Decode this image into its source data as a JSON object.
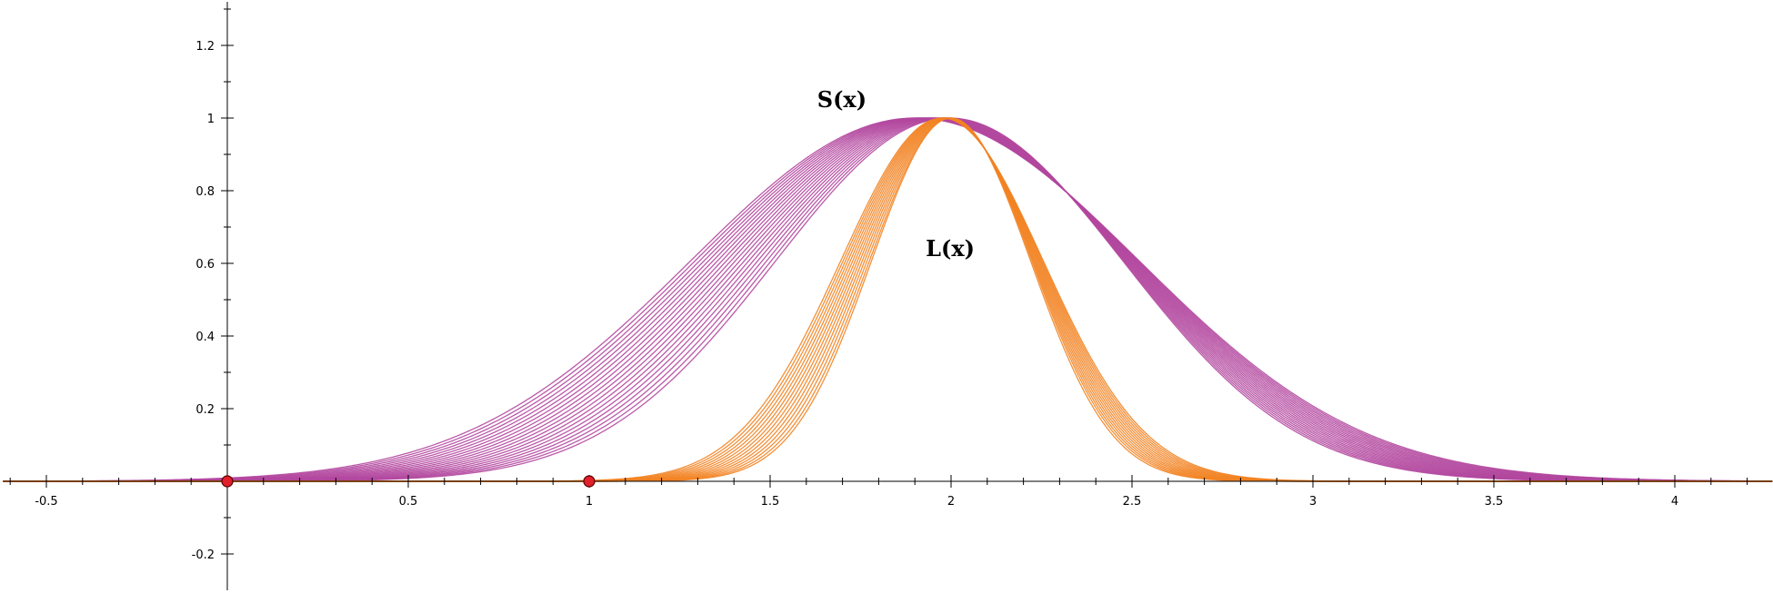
{
  "chart_data": {
    "type": "line",
    "title": "",
    "xlabel": "",
    "ylabel": "",
    "xlim": [
      -0.62,
      4.27
    ],
    "ylim": [
      -0.3,
      1.32
    ],
    "grid": false,
    "x_ticks": [
      {
        "value": -0.5,
        "label": "-0.5"
      },
      {
        "value": 0.5,
        "label": "0.5"
      },
      {
        "value": 1,
        "label": "1"
      },
      {
        "value": 1.5,
        "label": "1.5"
      },
      {
        "value": 2,
        "label": "2"
      },
      {
        "value": 2.5,
        "label": "2.5"
      },
      {
        "value": 3,
        "label": "3"
      },
      {
        "value": 3.5,
        "label": "3.5"
      },
      {
        "value": 4,
        "label": "4"
      }
    ],
    "y_ticks": [
      {
        "value": 1.2,
        "label": "1.2"
      },
      {
        "value": 1,
        "label": "1"
      },
      {
        "value": 0.8,
        "label": "0.8"
      },
      {
        "value": 0.6,
        "label": "0.6"
      },
      {
        "value": 0.4,
        "label": "0.4"
      },
      {
        "value": 0.2,
        "label": "0.2"
      },
      {
        "value": -0.2,
        "label": "-0.2"
      }
    ],
    "minor_tick_step": 0.1,
    "series": [
      {
        "name": "S(x)",
        "label": "S(x)",
        "color": "#b2479e",
        "kind": "gaussian-family",
        "centers": [
          1.9,
          1.905,
          1.91,
          1.915,
          1.92,
          1.925,
          1.93,
          1.935,
          1.94,
          1.945,
          1.95,
          1.955,
          1.96,
          1.965,
          1.97,
          1.975,
          1.98,
          1.985,
          1.99,
          1.995
        ],
        "sigma_range": [
          0.48,
          0.62
        ],
        "peak": 1
      },
      {
        "name": "L(x)",
        "label": "L(x)",
        "color": "#f28322",
        "kind": "gaussian-family",
        "centers": [
          1.975,
          1.977,
          1.979,
          1.981,
          1.983,
          1.985,
          1.987,
          1.989,
          1.991,
          1.993,
          1.995,
          1.997,
          1.999,
          2.0
        ],
        "sigma_range": [
          0.22,
          0.28
        ],
        "peak": 1
      }
    ],
    "points": [
      {
        "x": 0,
        "y": 0,
        "color": "#e0202a"
      },
      {
        "x": 1,
        "y": 0,
        "color": "#e0202a"
      }
    ],
    "annotations": [
      {
        "text": "S(x)",
        "x": 1.63,
        "y": 1.03
      },
      {
        "text": "L(x)",
        "x": 1.93,
        "y": 0.62
      }
    ]
  }
}
